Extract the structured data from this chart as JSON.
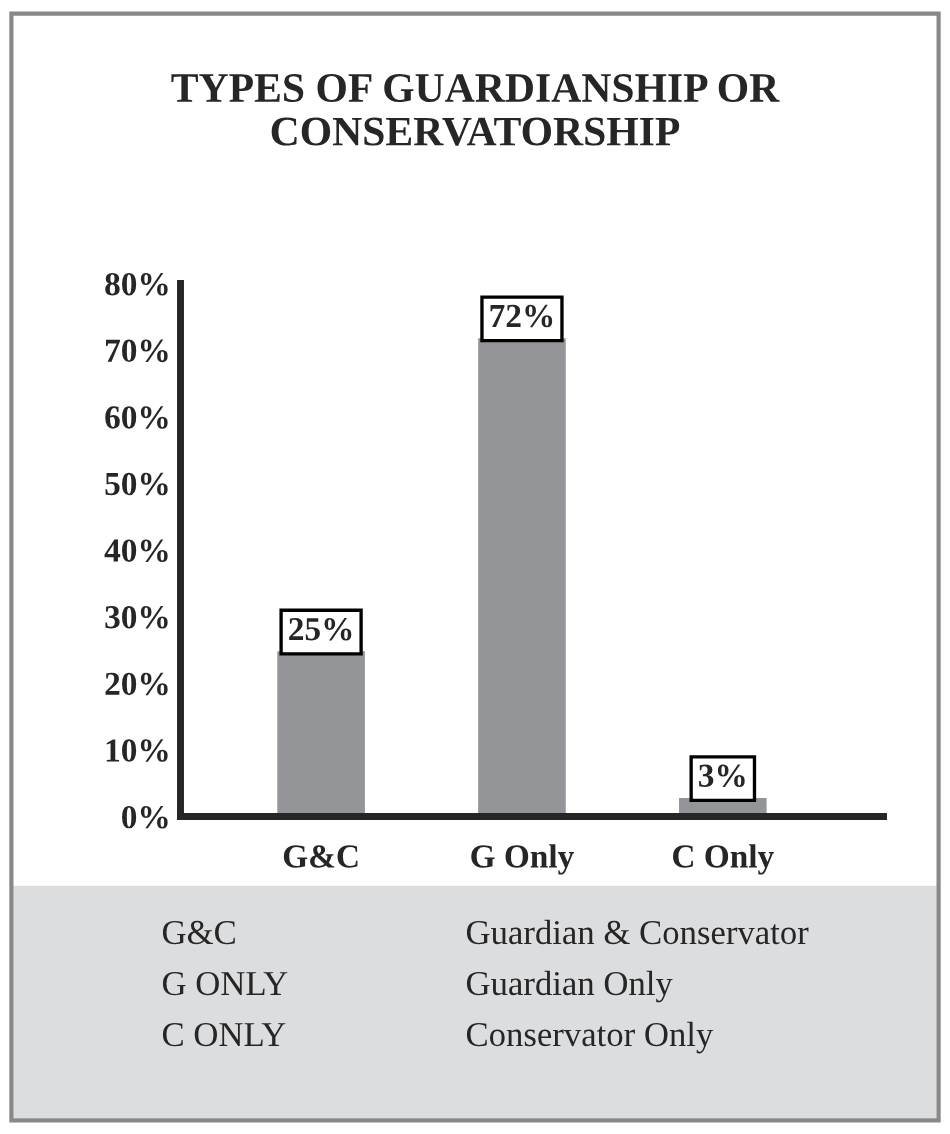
{
  "chart_data": {
    "type": "bar",
    "title": "TYPES OF GUARDIANSHIP OR CONSERVATORSHIP",
    "categories": [
      "G&C",
      "G Only",
      "C Only"
    ],
    "values": [
      25,
      72,
      3
    ],
    "color": "#939598",
    "data_labels": true,
    "value_labels": [
      "25%",
      "72%",
      "3%"
    ],
    "ylim": [
      0,
      80
    ],
    "yticks": [
      {
        "value": 0,
        "label": "0%"
      },
      {
        "value": 10,
        "label": "10%"
      },
      {
        "value": 20,
        "label": "20%"
      },
      {
        "value": 30,
        "label": "30%"
      },
      {
        "value": 40,
        "label": "40%"
      },
      {
        "value": 50,
        "label": "50%"
      },
      {
        "value": 60,
        "label": "60%"
      },
      {
        "value": 70,
        "label": "70%"
      },
      {
        "value": 80,
        "label": "80%"
      }
    ],
    "grid": false,
    "annotations": [
      "G&C",
      "Guardian & Conservator",
      "G ONLY",
      "Guardian Only",
      "C ONLY",
      "Conservator Only"
    ]
  }
}
